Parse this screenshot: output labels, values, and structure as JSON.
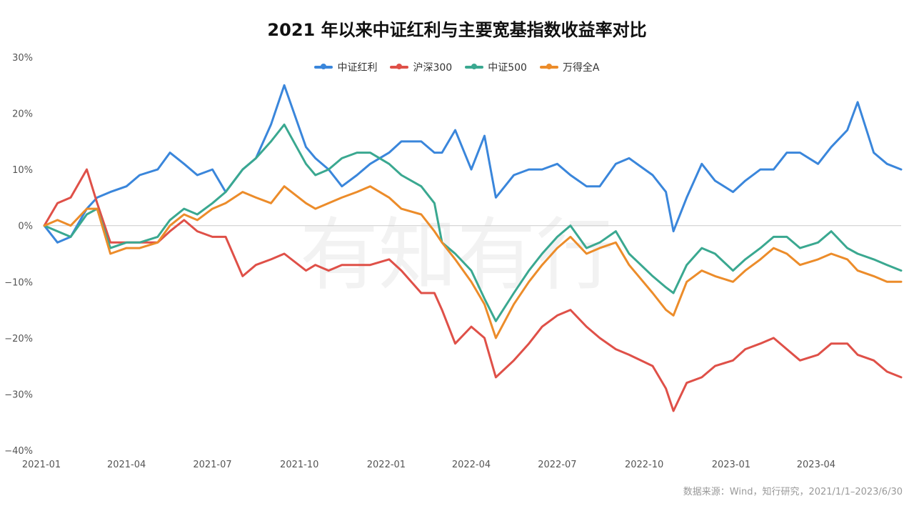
{
  "title": "2021 年以来中证红利与主要宽基指数收益率对比",
  "footer": "数据来源：Wind，知行研究，2021/1/1–2023/6/30",
  "watermark": "有知有行",
  "chart_data": {
    "type": "line",
    "ylim": [
      -40,
      30
    ],
    "yticks": [
      30,
      20,
      10,
      0,
      -10,
      -20,
      -30,
      -40
    ],
    "ytick_labels": [
      "30%",
      "20%",
      "10%",
      "0%",
      "−10%",
      "−20%",
      "−30%",
      "−40%"
    ],
    "xtick_labels": [
      "2021-01",
      "2021-04",
      "2021-07",
      "2021-10",
      "2022-01",
      "2022-04",
      "2022-07",
      "2022-10",
      "2023-01",
      "2023-04"
    ],
    "x": [
      "2021-01-04",
      "2021-01-18",
      "2021-02-01",
      "2021-02-18",
      "2021-03-01",
      "2021-03-15",
      "2021-04-01",
      "2021-04-15",
      "2021-05-04",
      "2021-05-17",
      "2021-06-01",
      "2021-06-15",
      "2021-07-01",
      "2021-07-15",
      "2021-08-02",
      "2021-08-16",
      "2021-09-01",
      "2021-09-15",
      "2021-10-08",
      "2021-10-18",
      "2021-11-01",
      "2021-11-15",
      "2021-12-01",
      "2021-12-15",
      "2022-01-04",
      "2022-01-17",
      "2022-02-07",
      "2022-02-21",
      "2022-03-01",
      "2022-03-15",
      "2022-04-01",
      "2022-04-15",
      "2022-04-27",
      "2022-05-16",
      "2022-06-01",
      "2022-06-15",
      "2022-07-01",
      "2022-07-15",
      "2022-08-01",
      "2022-08-15",
      "2022-09-01",
      "2022-09-15",
      "2022-10-10",
      "2022-10-24",
      "2022-11-01",
      "2022-11-15",
      "2022-12-01",
      "2022-12-15",
      "2023-01-03",
      "2023-01-16",
      "2023-02-01",
      "2023-02-15",
      "2023-03-01",
      "2023-03-15",
      "2023-04-03",
      "2023-04-17",
      "2023-05-04",
      "2023-05-15",
      "2023-06-01",
      "2023-06-15",
      "2023-06-30"
    ],
    "legend_position": "top",
    "series": [
      {
        "name": "中证红利",
        "color": "#3a86db",
        "values": [
          0,
          -3,
          -2,
          3,
          5,
          6,
          7,
          9,
          10,
          13,
          11,
          9,
          10,
          6,
          10,
          12,
          18,
          25,
          14,
          12,
          10,
          7,
          9,
          11,
          13,
          15,
          15,
          13,
          13,
          17,
          10,
          16,
          5,
          9,
          10,
          10,
          11,
          9,
          7,
          7,
          11,
          12,
          9,
          6,
          -1,
          5,
          11,
          8,
          6,
          8,
          10,
          10,
          13,
          13,
          11,
          14,
          17,
          22,
          13,
          11,
          10
        ]
      },
      {
        "name": "沪深300",
        "color": "#df5048",
        "values": [
          0,
          4,
          5,
          10,
          4,
          -3,
          -3,
          -3,
          -3,
          -1,
          1,
          -1,
          -2,
          -2,
          -9,
          -7,
          -6,
          -5,
          -8,
          -7,
          -8,
          -7,
          -7,
          -7,
          -6,
          -8,
          -12,
          -12,
          -15,
          -21,
          -18,
          -20,
          -27,
          -24,
          -21,
          -18,
          -16,
          -15,
          -18,
          -20,
          -22,
          -23,
          -25,
          -29,
          -33,
          -28,
          -27,
          -25,
          -24,
          -22,
          -21,
          -20,
          -22,
          -24,
          -23,
          -21,
          -21,
          -23,
          -24,
          -26,
          -27
        ]
      },
      {
        "name": "中证500",
        "color": "#3aa890",
        "values": [
          0,
          -1,
          -2,
          2,
          3,
          -4,
          -3,
          -3,
          -2,
          1,
          3,
          2,
          4,
          6,
          10,
          12,
          15,
          18,
          11,
          9,
          10,
          12,
          13,
          13,
          11,
          9,
          7,
          4,
          -3,
          -5,
          -8,
          -13,
          -17,
          -12,
          -8,
          -5,
          -2,
          0,
          -4,
          -3,
          -1,
          -5,
          -9,
          -11,
          -12,
          -7,
          -4,
          -5,
          -8,
          -6,
          -4,
          -2,
          -2,
          -4,
          -3,
          -1,
          -4,
          -5,
          -6,
          -7,
          -8
        ]
      },
      {
        "name": "万得全A",
        "color": "#ec8c2a",
        "values": [
          0,
          1,
          0,
          3,
          3,
          -5,
          -4,
          -4,
          -3,
          0,
          2,
          1,
          3,
          4,
          6,
          5,
          4,
          7,
          4,
          3,
          4,
          5,
          6,
          7,
          5,
          3,
          2,
          -1,
          -3,
          -6,
          -10,
          -14,
          -20,
          -14,
          -10,
          -7,
          -4,
          -2,
          -5,
          -4,
          -3,
          -7,
          -12,
          -15,
          -16,
          -10,
          -8,
          -9,
          -10,
          -8,
          -6,
          -4,
          -5,
          -7,
          -6,
          -5,
          -6,
          -8,
          -9,
          -10,
          -10
        ]
      }
    ]
  }
}
